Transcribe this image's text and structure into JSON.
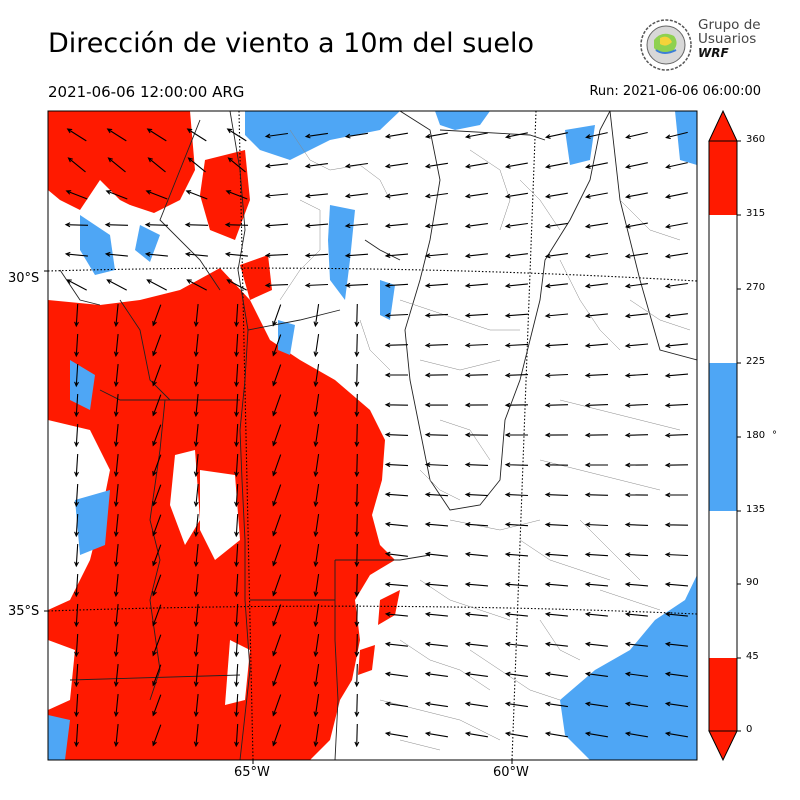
{
  "header": {
    "title": "Dirección de viento a 10m del suelo",
    "valid_time": "2021-06-06 12:00:00 ARG",
    "run_time": "Run: 2021-06-06 06:00:00"
  },
  "logo": {
    "line1": "Grupo de",
    "line2": "Usuarios",
    "line3": "WRF"
  },
  "map": {
    "lat_labels": [
      "30°S",
      "35°S"
    ],
    "lon_labels": [
      "65°W",
      "60°W"
    ],
    "shading_colors": {
      "red": "#ff1a00",
      "blue": "#4ea6f5",
      "white": "#ffffff"
    }
  },
  "colorbar": {
    "ticks": [
      "0",
      "45",
      "90",
      "135",
      "180",
      "225",
      "270",
      "315",
      "360"
    ],
    "unit": "°",
    "bins": [
      {
        "from": 0,
        "to": 45,
        "color": "#ff1a00"
      },
      {
        "from": 45,
        "to": 135,
        "color": "#ffffff"
      },
      {
        "from": 135,
        "to": 225,
        "color": "#4ea6f5"
      },
      {
        "from": 225,
        "to": 315,
        "color": "#ffffff"
      },
      {
        "from": 315,
        "to": 360,
        "color": "#ff1a00"
      }
    ]
  }
}
